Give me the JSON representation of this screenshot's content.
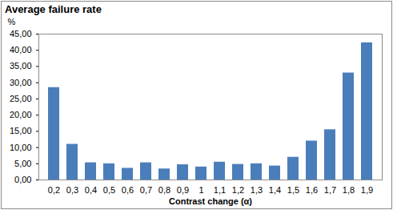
{
  "chart_data": {
    "type": "bar",
    "title": "Average failure rate",
    "x_label": "Contrast change (α)",
    "y_label": "%",
    "categories": [
      "0,2",
      "0,3",
      "0,4",
      "0,5",
      "0,6",
      "0,7",
      "0,8",
      "0,9",
      "1",
      "1,1",
      "1,2",
      "1,3",
      "1,4",
      "1,5",
      "1,6",
      "1,7",
      "1,8",
      "1,9"
    ],
    "values": [
      28.5,
      11,
      5.3,
      5,
      3.6,
      5.3,
      3.4,
      4.7,
      4,
      5.5,
      4.8,
      5,
      4.3,
      7,
      12,
      15.5,
      33,
      42.3
    ],
    "color": "#4a7ebb",
    "ylim": [
      0,
      45
    ],
    "yticks": [
      {
        "value": 0,
        "label": "0,00"
      },
      {
        "value": 5,
        "label": "5,00"
      },
      {
        "value": 10,
        "label": "10,00"
      },
      {
        "value": 15,
        "label": "15,00"
      },
      {
        "value": 20,
        "label": "20,00"
      },
      {
        "value": 25,
        "label": "25,00"
      },
      {
        "value": 30,
        "label": "30,00"
      },
      {
        "value": 35,
        "label": "35,00"
      },
      {
        "value": 40,
        "label": "40,00"
      },
      {
        "value": 45,
        "label": "45,00"
      }
    ],
    "grid": false
  }
}
